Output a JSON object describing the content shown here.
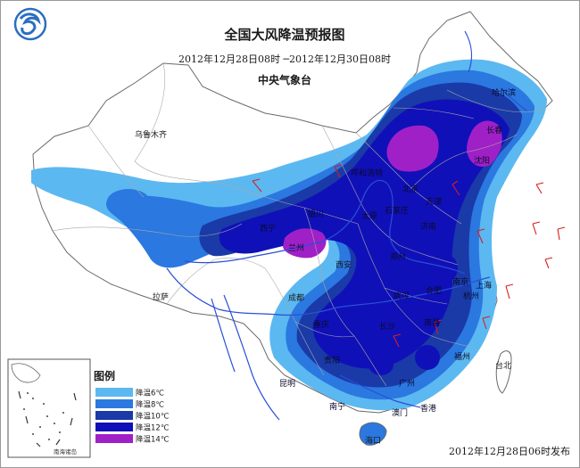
{
  "title": "全国大风降温预报图",
  "period": "2012年12月28日08时 ─2012年12月30日08时",
  "agency": "中央气象台",
  "issue_time": "2012年12月28日06时发布",
  "logo": {
    "icon": "cma-logo-icon",
    "color": "#2a6fc0"
  },
  "legend": {
    "title": "图例",
    "items": [
      {
        "label": "降温6℃",
        "color": "#5cb8f0"
      },
      {
        "label": "降温8℃",
        "color": "#2a78e0"
      },
      {
        "label": "降温10℃",
        "color": "#1a3aa8"
      },
      {
        "label": "降温12℃",
        "color": "#1010b8"
      },
      {
        "label": "降温14℃",
        "color": "#a020c8"
      }
    ]
  },
  "inset": {
    "label": "南海诸岛"
  },
  "cities": {
    "urumqi": "乌鲁木齐",
    "lhasa": "拉萨",
    "xian": "西安",
    "zhengzhou": "郑州",
    "chengdu": "成都",
    "chongqing": "重庆",
    "kunming": "昆明",
    "guiyang": "贵阳",
    "nanning": "南宁",
    "haikou": "海口",
    "aomen": "澳门",
    "xianggang": "香港",
    "taibei": "台北",
    "fuzhou": "福州",
    "guangzhou": "广州",
    "hangzhou": "杭州",
    "shanghai": "上海",
    "nanjing": "南京",
    "hefei": "合肥",
    "wuhan": "武汉",
    "changsha": "长沙",
    "nanchang": "南昌",
    "jinan": "济南",
    "shijiazhuang": "石家庄",
    "taiyuan": "太原",
    "tianjin": "天津",
    "beijing": "北京",
    "hohhot": "呼和浩特",
    "yinchuan": "银川",
    "lanzhou": "兰州",
    "xining": "西宁",
    "shenyang": "沈阳",
    "changchun": "长春",
    "harbin": "哈尔滨"
  }
}
